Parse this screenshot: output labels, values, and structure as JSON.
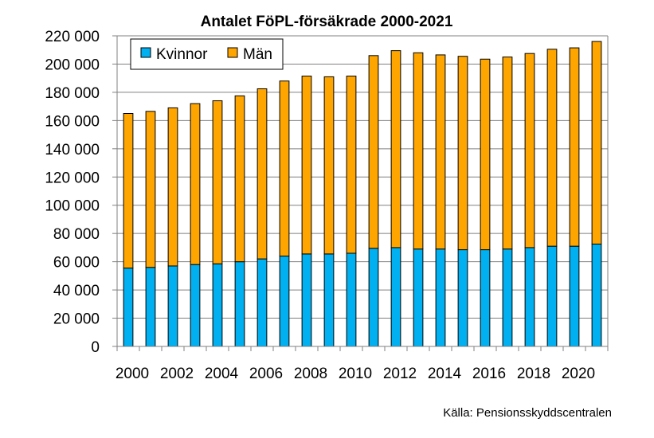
{
  "chart_data": {
    "type": "bar",
    "stacked": true,
    "title": "Antalet FöPL-försäkrade 2000-2021",
    "source": "Källa: Pensionsskyddscentralen",
    "x": [
      2000,
      2001,
      2002,
      2003,
      2004,
      2005,
      2006,
      2007,
      2008,
      2009,
      2010,
      2011,
      2012,
      2013,
      2014,
      2015,
      2016,
      2017,
      2018,
      2019,
      2020,
      2021
    ],
    "x_tick_labels": [
      "2000",
      "2002",
      "2004",
      "2006",
      "2008",
      "2010",
      "2012",
      "2014",
      "2016",
      "2018",
      "2020"
    ],
    "y_tick_labels": [
      "0",
      "20 000",
      "40 000",
      "60 000",
      "80 000",
      "100 000",
      "120 000",
      "140 000",
      "160 000",
      "180 000",
      "200 000",
      "220 000"
    ],
    "ylim": [
      0,
      220000
    ],
    "grid": true,
    "legend_position": "top-left",
    "series": [
      {
        "name": "Kvinnor",
        "color": "#00B0F0",
        "values": [
          55500,
          56000,
          57000,
          58000,
          58500,
          60000,
          62000,
          64000,
          65500,
          65500,
          66000,
          69500,
          70000,
          69000,
          69000,
          68500,
          68500,
          69000,
          70000,
          71000,
          71000,
          72500
        ]
      },
      {
        "name": "Män",
        "color": "#FFA500",
        "values": [
          109500,
          110500,
          112000,
          114000,
          115500,
          117500,
          120500,
          124000,
          126000,
          125500,
          125500,
          136500,
          139500,
          139000,
          137500,
          137000,
          135000,
          136000,
          137500,
          139500,
          140500,
          143500
        ]
      }
    ]
  }
}
